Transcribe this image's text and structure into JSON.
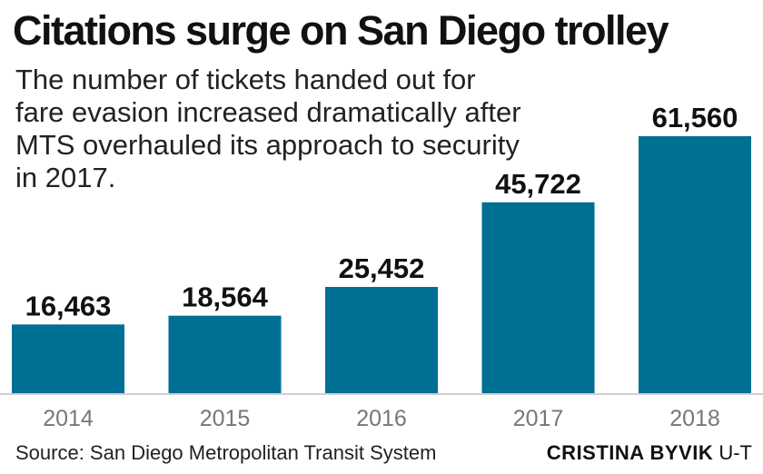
{
  "title": "Citations surge on San Diego trolley",
  "subtitle": "The number of tickets handed out for fare evasion increased dramatically after MTS overhauled its approach to security in 2017.",
  "source": "Source: San Diego Metropolitan Transit System",
  "credit": {
    "name": "CRISTINA BYVIK",
    "org": "U-T"
  },
  "colors": {
    "bar": "#006f94",
    "axis": "#d0d0d0",
    "tick_label": "#777777",
    "value_label": "#111111"
  },
  "chart_data": {
    "type": "bar",
    "title": "Citations surge on San Diego trolley",
    "categories": [
      "2014",
      "2015",
      "2016",
      "2017",
      "2018"
    ],
    "values": [
      16463,
      18564,
      25452,
      45722,
      61560
    ],
    "value_labels": [
      "16,463",
      "18,564",
      "25,452",
      "45,722",
      "61,560"
    ],
    "xlabel": "",
    "ylabel": "",
    "ylim": [
      0,
      70000
    ],
    "grid": false,
    "legend": "none"
  }
}
